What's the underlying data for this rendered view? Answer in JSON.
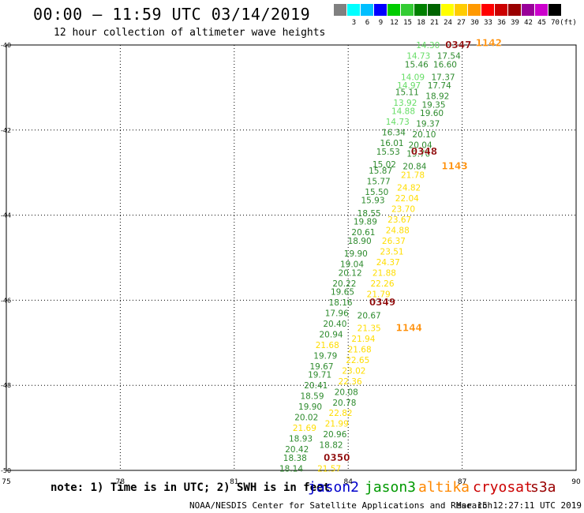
{
  "header": {
    "title": "00:00 — 11:59 UTC 03/14/2019",
    "subtitle": "12 hour collection of altimeter wave heights"
  },
  "color_scale": {
    "unit_label": "(ft)",
    "bins": [
      {
        "label": "",
        "color": "#808080"
      },
      {
        "label": "3",
        "color": "#00ffff"
      },
      {
        "label": "6",
        "color": "#00bfff"
      },
      {
        "label": "9",
        "color": "#0000ff"
      },
      {
        "label": "12",
        "color": "#00cc00"
      },
      {
        "label": "15",
        "color": "#33cc33"
      },
      {
        "label": "18",
        "color": "#008000"
      },
      {
        "label": "21",
        "color": "#006400"
      },
      {
        "label": "24",
        "color": "#ffff00"
      },
      {
        "label": "27",
        "color": "#ffcc00"
      },
      {
        "label": "30",
        "color": "#ff9900"
      },
      {
        "label": "33",
        "color": "#ff0000"
      },
      {
        "label": "36",
        "color": "#cc0000"
      },
      {
        "label": "39",
        "color": "#990000"
      },
      {
        "label": "42",
        "color": "#990099"
      },
      {
        "label": "45",
        "color": "#cc00cc"
      },
      {
        "label": "70",
        "color": "#000000"
      }
    ]
  },
  "axes": {
    "lon_ticks": [
      "75",
      "78",
      "81",
      "84",
      "87",
      "90"
    ],
    "lat_ticks": [
      "-40",
      "-42",
      "-44",
      "-46",
      "-48",
      "-50"
    ],
    "lon_values": [
      75,
      78,
      81,
      84,
      87,
      90
    ],
    "lat_values": [
      -40,
      -42,
      -44,
      -46,
      -48,
      -50
    ]
  },
  "passes": [
    {
      "label": "0347",
      "color": "#8b0000",
      "lon": 86.9,
      "lat": -40.0
    },
    {
      "label": "1142",
      "color": "#ff8c00",
      "lon": 87.7,
      "lat": -39.95
    },
    {
      "label": "0348",
      "color": "#8b0000",
      "lon": 86.0,
      "lat": -42.5
    },
    {
      "label": "1143",
      "color": "#ff8c00",
      "lon": 86.8,
      "lat": -42.85
    },
    {
      "label": "0349",
      "color": "#8b0000",
      "lon": 84.9,
      "lat": -46.05
    },
    {
      "label": "1144",
      "color": "#ff8c00",
      "lon": 85.6,
      "lat": -46.65
    },
    {
      "label": "0350",
      "color": "#8b0000",
      "lon": 83.7,
      "lat": -49.7
    }
  ],
  "wave_heights": {
    "jason3": [
      {
        "text": "14.30",
        "lon": 86.1,
        "lat": -40.0,
        "color": "#66dd66"
      },
      {
        "text": "14.73",
        "lon": 85.85,
        "lat": -40.25,
        "color": "#66dd66"
      },
      {
        "text": "15.46",
        "lon": 85.8,
        "lat": -40.45,
        "color": "#2e8b2e"
      },
      {
        "text": "14.09",
        "lon": 85.7,
        "lat": -40.75,
        "color": "#66dd66"
      },
      {
        "text": "14.97",
        "lon": 85.6,
        "lat": -40.95,
        "color": "#66dd66"
      },
      {
        "text": "15.11",
        "lon": 85.55,
        "lat": -41.1,
        "color": "#2e8b2e"
      },
      {
        "text": "13.92",
        "lon": 85.5,
        "lat": -41.35,
        "color": "#66dd66"
      },
      {
        "text": "14.88",
        "lon": 85.45,
        "lat": -41.55,
        "color": "#66dd66"
      },
      {
        "text": "14.73",
        "lon": 85.3,
        "lat": -41.8,
        "color": "#66dd66"
      },
      {
        "text": "16.34",
        "lon": 85.2,
        "lat": -42.05,
        "color": "#2e8b2e"
      },
      {
        "text": "16.01",
        "lon": 85.15,
        "lat": -42.3,
        "color": "#2e8b2e"
      },
      {
        "text": "15.53",
        "lon": 85.05,
        "lat": -42.5,
        "color": "#2e8b2e"
      },
      {
        "text": "15.02",
        "lon": 84.95,
        "lat": -42.8,
        "color": "#2e8b2e"
      },
      {
        "text": "15.87",
        "lon": 84.85,
        "lat": -42.95,
        "color": "#2e8b2e"
      },
      {
        "text": "15.77",
        "lon": 84.8,
        "lat": -43.2,
        "color": "#2e8b2e"
      },
      {
        "text": "15.50",
        "lon": 84.75,
        "lat": -43.45,
        "color": "#2e8b2e"
      },
      {
        "text": "15.93",
        "lon": 84.65,
        "lat": -43.65,
        "color": "#2e8b2e"
      },
      {
        "text": "18.55",
        "lon": 84.55,
        "lat": -43.95,
        "color": "#2e8b2e"
      },
      {
        "text": "19.89",
        "lon": 84.45,
        "lat": -44.15,
        "color": "#2e8b2e"
      },
      {
        "text": "20.61",
        "lon": 84.4,
        "lat": -44.4,
        "color": "#2e8b2e"
      },
      {
        "text": "18.90",
        "lon": 84.3,
        "lat": -44.6,
        "color": "#2e8b2e"
      },
      {
        "text": "19.90",
        "lon": 84.2,
        "lat": -44.9,
        "color": "#2e8b2e"
      },
      {
        "text": "19.04",
        "lon": 84.1,
        "lat": -45.15,
        "color": "#2e8b2e"
      },
      {
        "text": "20.12",
        "lon": 84.05,
        "lat": -45.35,
        "color": "#2e8b2e"
      },
      {
        "text": "20.22",
        "lon": 83.9,
        "lat": -45.6,
        "color": "#2e8b2e"
      },
      {
        "text": "19.65",
        "lon": 83.85,
        "lat": -45.8,
        "color": "#2e8b2e"
      },
      {
        "text": "18.16",
        "lon": 83.8,
        "lat": -46.05,
        "color": "#2e8b2e"
      },
      {
        "text": "17.96",
        "lon": 83.7,
        "lat": -46.3,
        "color": "#2e8b2e"
      },
      {
        "text": "20.40",
        "lon": 83.65,
        "lat": -46.55,
        "color": "#2e8b2e"
      },
      {
        "text": "20.94",
        "lon": 83.55,
        "lat": -46.8,
        "color": "#2e8b2e"
      },
      {
        "text": "21.68",
        "lon": 83.45,
        "lat": -47.05,
        "color": "#ffdd00"
      },
      {
        "text": "19.79",
        "lon": 83.4,
        "lat": -47.3,
        "color": "#2e8b2e"
      },
      {
        "text": "19.67",
        "lon": 83.3,
        "lat": -47.55,
        "color": "#2e8b2e"
      },
      {
        "text": "19.71",
        "lon": 83.25,
        "lat": -47.75,
        "color": "#2e8b2e"
      },
      {
        "text": "20.41",
        "lon": 83.15,
        "lat": -48.0,
        "color": "#2e8b2e"
      },
      {
        "text": "18.59",
        "lon": 83.05,
        "lat": -48.25,
        "color": "#2e8b2e"
      },
      {
        "text": "19.90",
        "lon": 83.0,
        "lat": -48.5,
        "color": "#2e8b2e"
      },
      {
        "text": "20.02",
        "lon": 82.9,
        "lat": -48.75,
        "color": "#2e8b2e"
      },
      {
        "text": "21.69",
        "lon": 82.85,
        "lat": -49.0,
        "color": "#ffdd00"
      },
      {
        "text": "18.93",
        "lon": 82.75,
        "lat": -49.25,
        "color": "#2e8b2e"
      },
      {
        "text": "20.42",
        "lon": 82.65,
        "lat": -49.5,
        "color": "#2e8b2e"
      },
      {
        "text": "18.38",
        "lon": 82.6,
        "lat": -49.7,
        "color": "#2e8b2e"
      },
      {
        "text": "18.14",
        "lon": 82.5,
        "lat": -49.95,
        "color": "#2e8b2e"
      }
    ],
    "altika": [
      {
        "text": "17.54",
        "lon": 86.65,
        "lat": -40.25,
        "color": "#2e8b2e"
      },
      {
        "text": "16.60",
        "lon": 86.55,
        "lat": -40.45,
        "color": "#2e8b2e"
      },
      {
        "text": "17.37",
        "lon": 86.5,
        "lat": -40.75,
        "color": "#2e8b2e"
      },
      {
        "text": "17.74",
        "lon": 86.4,
        "lat": -40.95,
        "color": "#2e8b2e"
      },
      {
        "text": "18.92",
        "lon": 86.35,
        "lat": -41.2,
        "color": "#2e8b2e"
      },
      {
        "text": "19.35",
        "lon": 86.25,
        "lat": -41.4,
        "color": "#2e8b2e"
      },
      {
        "text": "19.60",
        "lon": 86.2,
        "lat": -41.6,
        "color": "#2e8b2e"
      },
      {
        "text": "19.37",
        "lon": 86.1,
        "lat": -41.85,
        "color": "#2e8b2e"
      },
      {
        "text": "20.10",
        "lon": 86.0,
        "lat": -42.1,
        "color": "#2e8b2e"
      },
      {
        "text": "20.04",
        "lon": 85.9,
        "lat": -42.35,
        "color": "#2e8b2e"
      },
      {
        "text": "19.70",
        "lon": 85.85,
        "lat": -42.55,
        "color": "#2e8b2e"
      },
      {
        "text": "20.84",
        "lon": 85.75,
        "lat": -42.85,
        "color": "#2e8b2e"
      },
      {
        "text": "21.78",
        "lon": 85.7,
        "lat": -43.05,
        "color": "#ffdd00"
      },
      {
        "text": "24.82",
        "lon": 85.6,
        "lat": -43.35,
        "color": "#ffdd00"
      },
      {
        "text": "22.04",
        "lon": 85.55,
        "lat": -43.6,
        "color": "#ffdd00"
      },
      {
        "text": "23.70",
        "lon": 85.45,
        "lat": -43.85,
        "color": "#ffdd00"
      },
      {
        "text": "23.67",
        "lon": 85.35,
        "lat": -44.1,
        "color": "#ffdd00"
      },
      {
        "text": "24.88",
        "lon": 85.3,
        "lat": -44.35,
        "color": "#ffdd00"
      },
      {
        "text": "26.37",
        "lon": 85.2,
        "lat": -44.6,
        "color": "#ffdd00"
      },
      {
        "text": "23.51",
        "lon": 85.15,
        "lat": -44.85,
        "color": "#ffdd00"
      },
      {
        "text": "24.37",
        "lon": 85.05,
        "lat": -45.1,
        "color": "#ffdd00"
      },
      {
        "text": "21.88",
        "lon": 84.95,
        "lat": -45.35,
        "color": "#ffdd00"
      },
      {
        "text": "22.26",
        "lon": 84.9,
        "lat": -45.6,
        "color": "#ffdd00"
      },
      {
        "text": "21.79",
        "lon": 84.8,
        "lat": -45.85,
        "color": "#ffdd00"
      },
      {
        "text": "20.67",
        "lon": 84.55,
        "lat": -46.35,
        "color": "#2e8b2e"
      },
      {
        "text": "21.35",
        "lon": 84.55,
        "lat": -46.65,
        "color": "#ffdd00"
      },
      {
        "text": "21.94",
        "lon": 84.4,
        "lat": -46.9,
        "color": "#ffdd00"
      },
      {
        "text": "21.68",
        "lon": 84.3,
        "lat": -47.15,
        "color": "#ffdd00"
      },
      {
        "text": "22.65",
        "lon": 84.25,
        "lat": -47.4,
        "color": "#ffdd00"
      },
      {
        "text": "23.02",
        "lon": 84.15,
        "lat": -47.65,
        "color": "#ffdd00"
      },
      {
        "text": "22.36",
        "lon": 84.05,
        "lat": -47.9,
        "color": "#ffdd00"
      },
      {
        "text": "20.08",
        "lon": 83.95,
        "lat": -48.15,
        "color": "#2e8b2e"
      },
      {
        "text": "20.78",
        "lon": 83.9,
        "lat": -48.4,
        "color": "#2e8b2e"
      },
      {
        "text": "22.82",
        "lon": 83.8,
        "lat": -48.65,
        "color": "#ffdd00"
      },
      {
        "text": "21.99",
        "lon": 83.7,
        "lat": -48.9,
        "color": "#ffdd00"
      },
      {
        "text": "20.96",
        "lon": 83.65,
        "lat": -49.15,
        "color": "#2e8b2e"
      },
      {
        "text": "18.82",
        "lon": 83.55,
        "lat": -49.4,
        "color": "#2e8b2e"
      },
      {
        "text": "21.57",
        "lon": 83.5,
        "lat": -49.95,
        "color": "#ffdd00"
      }
    ]
  },
  "footer": {
    "note": "note: 1) Time is in UTC; 2) SWH is in feet",
    "satellites": [
      {
        "name": "jason2",
        "color": "#0000cc"
      },
      {
        "name": "jason3",
        "color": "#009900"
      },
      {
        "name": "altika",
        "color": "#ff8800"
      },
      {
        "name": "cryosat",
        "color": "#cc0000"
      },
      {
        "name": "s3a",
        "color": "#990000"
      }
    ],
    "credit": "NOAA/NESDIS Center for Satellite Applications and Research",
    "timestamp": "Mar 15 12:27:11 UTC 2019"
  }
}
